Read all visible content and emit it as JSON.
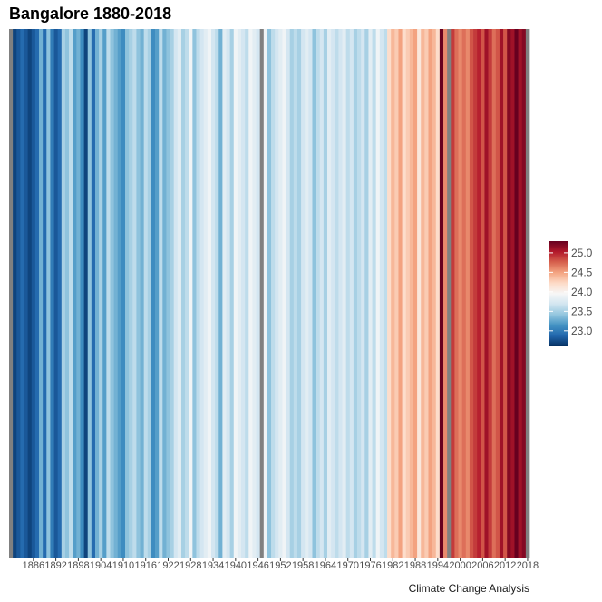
{
  "chart_data": {
    "type": "heatmap",
    "title": "Bangalore 1880-2018",
    "caption": "Climate Change Analysis",
    "x_start_year": 1880,
    "x_end_year": 2018,
    "x_tick_labels": [
      "1886",
      "1892",
      "1898",
      "1904",
      "1910",
      "1916",
      "1922",
      "1928",
      "1934",
      "1940",
      "1946",
      "1952",
      "1958",
      "1964",
      "1970",
      "1976",
      "1982",
      "1988",
      "1994",
      "2000",
      "2006",
      "2012",
      "2018"
    ],
    "missing_color": "#808080",
    "color_scale": {
      "colors": [
        "#053061",
        "#2166ac",
        "#4393c3",
        "#92c5de",
        "#d1e5f0",
        "#f7f7f7",
        "#fddbc7",
        "#f4a582",
        "#d6604d",
        "#b2182b",
        "#67001f"
      ],
      "domain": [
        22.6,
        25.3
      ],
      "legend_ticks": [
        23.0,
        23.5,
        24.0,
        24.5,
        25.0
      ],
      "legend_tick_labels": [
        "23.0",
        "23.5",
        "24.0",
        "24.5",
        "25.0"
      ]
    },
    "values": [
      null,
      22.7,
      22.8,
      22.9,
      22.8,
      22.7,
      22.8,
      22.9,
      23.3,
      22.9,
      23.4,
      23.0,
      22.8,
      22.9,
      23.5,
      23.4,
      23.6,
      23.2,
      23.3,
      23.1,
      22.7,
      23.4,
      22.9,
      23.3,
      23.5,
      23.2,
      23.6,
      23.4,
      23.3,
      23.2,
      23.1,
      23.4,
      23.5,
      23.6,
      23.4,
      23.3,
      23.6,
      23.5,
      23.1,
      23.2,
      23.6,
      23.3,
      23.4,
      23.5,
      23.7,
      23.8,
      23.5,
      23.6,
      23.9,
      23.4,
      23.6,
      23.7,
      23.8,
      23.9,
      23.7,
      23.6,
      23.3,
      23.8,
      23.7,
      23.5,
      23.9,
      23.8,
      23.7,
      23.6,
      23.9,
      23.8,
      23.7,
      null,
      23.9,
      23.4,
      23.6,
      23.7,
      23.8,
      23.9,
      23.7,
      23.5,
      23.6,
      23.5,
      23.7,
      23.8,
      23.7,
      23.4,
      23.6,
      23.7,
      23.5,
      23.8,
      23.7,
      23.6,
      23.7,
      23.8,
      23.6,
      23.7,
      23.5,
      23.6,
      23.7,
      23.5,
      23.8,
      23.6,
      23.9,
      23.7,
      23.6,
      24.2,
      24.4,
      24.3,
      24.5,
      24.2,
      24.3,
      24.4,
      24.5,
      24.1,
      24.4,
      24.3,
      24.5,
      24.4,
      24.2,
      25.3,
      24.6,
      null,
      24.9,
      24.7,
      24.6,
      24.7,
      24.6,
      24.8,
      24.9,
      25.0,
      24.8,
      25.1,
      24.9,
      24.7,
      24.8,
      25.1,
      24.8,
      25.2,
      25.1,
      25.3,
      25.1,
      25.2,
      null
    ]
  }
}
